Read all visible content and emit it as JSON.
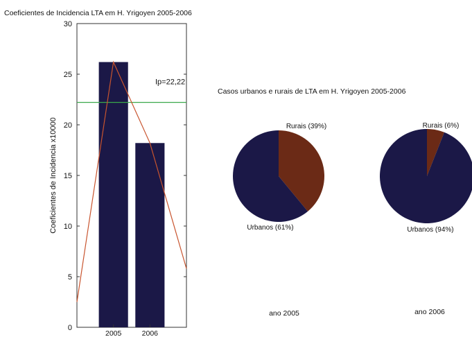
{
  "colors": {
    "bar": "#1b1847",
    "trend": "#c8542e",
    "threshold": "#3aa84a",
    "pie_urbanos": "#1b1847",
    "pie_rurais": "#6b2a16",
    "axis": "#333333"
  },
  "chart_data": [
    {
      "type": "bar",
      "title": "Coeficientes de Incidencia LTA em H. Yrigoyen 2005-2006",
      "xlabel": "",
      "ylabel": "Coeficientes de Incidencia x10000",
      "categories": [
        "2005",
        "2006"
      ],
      "values": [
        26.2,
        18.2
      ],
      "ylim": [
        0,
        30
      ],
      "yticks": [
        0,
        5,
        10,
        15,
        20,
        25,
        30
      ],
      "reference_line": {
        "label": "Ip=22,22",
        "value": 22.22
      },
      "trend_line": {
        "x": [
          0.2,
          2005,
          2006,
          3
        ],
        "y": [
          2.5,
          26.2,
          18.2,
          5.8
        ]
      },
      "grid": false
    },
    {
      "type": "pie",
      "title": "Casos urbanos e rurais de LTA em H. Yrigoyen  2005-2006",
      "caption": "ano 2005",
      "slices": [
        {
          "label": "Rurais (39%)",
          "value": 39
        },
        {
          "label": "Urbanos (61%)",
          "value": 61
        }
      ]
    },
    {
      "type": "pie",
      "title": "",
      "caption": "ano 2006",
      "slices": [
        {
          "label": "Rurais (6%)",
          "value": 6
        },
        {
          "label": "Urbanos (94%)",
          "value": 94
        }
      ]
    }
  ]
}
